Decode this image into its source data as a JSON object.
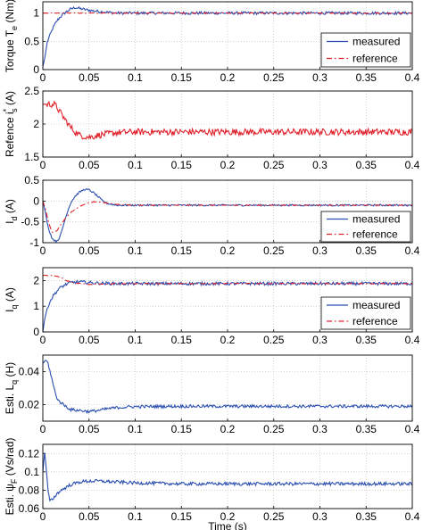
{
  "chart_data": [
    {
      "type": "line",
      "ylabel": "Torque T",
      "ylabel_sub": "e",
      "ylabel_unit": " (Nm)",
      "xlim": [
        0,
        0.4
      ],
      "ylim": [
        0,
        1.2
      ],
      "xticks": [
        "0",
        "0.05",
        "0.1",
        "0.15",
        "0.2",
        "0.25",
        "0.3",
        "0.35",
        "0.4"
      ],
      "yticks": [
        "0",
        "0.5",
        "1"
      ],
      "grid": true,
      "legend": "bottom-right",
      "series": [
        {
          "name": "measured",
          "color": "#2b4fb0",
          "style": "solid",
          "points": [
            [
              0,
              0.05
            ],
            [
              0.002,
              0.2
            ],
            [
              0.005,
              0.5
            ],
            [
              0.008,
              0.62
            ],
            [
              0.01,
              0.7
            ],
            [
              0.013,
              0.8
            ],
            [
              0.016,
              0.88
            ],
            [
              0.02,
              0.95
            ],
            [
              0.025,
              1.02
            ],
            [
              0.03,
              1.07
            ],
            [
              0.035,
              1.1
            ],
            [
              0.04,
              1.08
            ],
            [
              0.05,
              1.05
            ],
            [
              0.06,
              1.03
            ],
            [
              0.08,
              1.0
            ],
            [
              0.1,
              1.0
            ],
            [
              0.15,
              1.0
            ],
            [
              0.2,
              1.0
            ],
            [
              0.25,
              1.0
            ],
            [
              0.3,
              1.0
            ],
            [
              0.35,
              1.0
            ],
            [
              0.4,
              1.0
            ]
          ]
        },
        {
          "name": "reference",
          "color": "#e0202a",
          "style": "dashdot",
          "points": [
            [
              0,
              1.0
            ],
            [
              0.4,
              1.0
            ]
          ]
        }
      ]
    },
    {
      "type": "line",
      "ylabel": "Refence i",
      "ylabel_sup": "*",
      "ylabel_sub": "s",
      "ylabel_unit": " (A)",
      "xlim": [
        0,
        0.4
      ],
      "ylim": [
        1.5,
        2.5
      ],
      "xticks": [
        "0",
        "0.05",
        "0.1",
        "0.15",
        "0.2",
        "0.25",
        "0.3",
        "0.35",
        "0.4"
      ],
      "yticks": [
        "1.5",
        "2",
        "2.5"
      ],
      "grid": true,
      "series": [
        {
          "color": "#e0202a",
          "style": "solid",
          "points": [
            [
              0,
              2.3
            ],
            [
              0.012,
              2.3
            ],
            [
              0.015,
              2.26
            ],
            [
              0.02,
              2.15
            ],
            [
              0.025,
              2.05
            ],
            [
              0.03,
              1.95
            ],
            [
              0.035,
              1.88
            ],
            [
              0.04,
              1.83
            ],
            [
              0.05,
              1.8
            ],
            [
              0.06,
              1.83
            ],
            [
              0.08,
              1.87
            ],
            [
              0.1,
              1.88
            ],
            [
              0.15,
              1.88
            ],
            [
              0.2,
              1.88
            ],
            [
              0.25,
              1.88
            ],
            [
              0.3,
              1.88
            ],
            [
              0.35,
              1.88
            ],
            [
              0.4,
              1.88
            ]
          ]
        }
      ]
    },
    {
      "type": "line",
      "ylabel": "I",
      "ylabel_sub": "d",
      "ylabel_unit": " (A)",
      "xlim": [
        0,
        0.4
      ],
      "ylim": [
        -1,
        0.5
      ],
      "xticks": [
        "0",
        "0.05",
        "0.1",
        "0.15",
        "0.2",
        "0.25",
        "0.3",
        "0.35",
        "0.4"
      ],
      "yticks": [
        "-1",
        "-0.5",
        "0",
        "0.5"
      ],
      "grid": true,
      "legend": "bottom-right",
      "series": [
        {
          "name": "measured",
          "color": "#2b4fb0",
          "style": "solid",
          "points": [
            [
              0,
              0
            ],
            [
              0.003,
              -0.3
            ],
            [
              0.006,
              -0.65
            ],
            [
              0.01,
              -0.9
            ],
            [
              0.014,
              -0.97
            ],
            [
              0.018,
              -0.9
            ],
            [
              0.022,
              -0.6
            ],
            [
              0.026,
              -0.3
            ],
            [
              0.03,
              -0.05
            ],
            [
              0.035,
              0.12
            ],
            [
              0.04,
              0.22
            ],
            [
              0.045,
              0.28
            ],
            [
              0.05,
              0.27
            ],
            [
              0.055,
              0.2
            ],
            [
              0.06,
              0.1
            ],
            [
              0.065,
              0.0
            ],
            [
              0.07,
              -0.06
            ],
            [
              0.08,
              -0.1
            ],
            [
              0.1,
              -0.1
            ],
            [
              0.15,
              -0.1
            ],
            [
              0.2,
              -0.1
            ],
            [
              0.25,
              -0.1
            ],
            [
              0.3,
              -0.1
            ],
            [
              0.35,
              -0.1
            ],
            [
              0.4,
              -0.1
            ]
          ]
        },
        {
          "name": "reference",
          "color": "#e0202a",
          "style": "dashdot",
          "points": [
            [
              0,
              0
            ],
            [
              0.003,
              -0.2
            ],
            [
              0.006,
              -0.5
            ],
            [
              0.01,
              -0.75
            ],
            [
              0.015,
              -0.72
            ],
            [
              0.02,
              -0.55
            ],
            [
              0.025,
              -0.4
            ],
            [
              0.03,
              -0.28
            ],
            [
              0.035,
              -0.2
            ],
            [
              0.04,
              -0.13
            ],
            [
              0.045,
              -0.08
            ],
            [
              0.05,
              -0.04
            ],
            [
              0.055,
              -0.02
            ],
            [
              0.06,
              -0.02
            ],
            [
              0.07,
              -0.05
            ],
            [
              0.08,
              -0.08
            ],
            [
              0.1,
              -0.1
            ],
            [
              0.15,
              -0.1
            ],
            [
              0.2,
              -0.1
            ],
            [
              0.25,
              -0.1
            ],
            [
              0.3,
              -0.1
            ],
            [
              0.35,
              -0.1
            ],
            [
              0.4,
              -0.1
            ]
          ]
        }
      ]
    },
    {
      "type": "line",
      "ylabel": "I",
      "ylabel_sub": "q",
      "ylabel_unit": " (A)",
      "xlim": [
        0,
        0.4
      ],
      "ylim": [
        0,
        2.5
      ],
      "xticks": [
        "0",
        "0.05",
        "0.1",
        "0.15",
        "0.2",
        "0.25",
        "0.3",
        "0.35",
        "0.4"
      ],
      "yticks": [
        "0",
        "1",
        "2"
      ],
      "grid": true,
      "legend": "bottom-right",
      "series": [
        {
          "name": "measured",
          "color": "#2b4fb0",
          "style": "solid",
          "points": [
            [
              0,
              0
            ],
            [
              0.002,
              0.5
            ],
            [
              0.005,
              0.95
            ],
            [
              0.008,
              1.2
            ],
            [
              0.012,
              1.45
            ],
            [
              0.016,
              1.62
            ],
            [
              0.02,
              1.75
            ],
            [
              0.025,
              1.85
            ],
            [
              0.03,
              1.92
            ],
            [
              0.04,
              1.95
            ],
            [
              0.05,
              1.92
            ],
            [
              0.06,
              1.9
            ],
            [
              0.08,
              1.88
            ],
            [
              0.1,
              1.88
            ],
            [
              0.15,
              1.88
            ],
            [
              0.2,
              1.88
            ],
            [
              0.25,
              1.88
            ],
            [
              0.3,
              1.88
            ],
            [
              0.35,
              1.88
            ],
            [
              0.4,
              1.88
            ]
          ]
        },
        {
          "name": "reference",
          "color": "#e0202a",
          "style": "dashdot",
          "points": [
            [
              0,
              2.2
            ],
            [
              0.012,
              2.2
            ],
            [
              0.016,
              2.15
            ],
            [
              0.02,
              2.1
            ],
            [
              0.025,
              2.0
            ],
            [
              0.03,
              1.94
            ],
            [
              0.04,
              1.88
            ],
            [
              0.05,
              1.85
            ],
            [
              0.06,
              1.86
            ],
            [
              0.08,
              1.88
            ],
            [
              0.1,
              1.88
            ],
            [
              0.15,
              1.88
            ],
            [
              0.2,
              1.88
            ],
            [
              0.25,
              1.88
            ],
            [
              0.3,
              1.88
            ],
            [
              0.35,
              1.88
            ],
            [
              0.4,
              1.88
            ]
          ]
        }
      ]
    },
    {
      "type": "line",
      "ylabel": "Esti. L",
      "ylabel_sub": "q",
      "ylabel_unit": " (H)",
      "xlim": [
        0,
        0.4
      ],
      "ylim": [
        0.01,
        0.05
      ],
      "xticks": [
        "0",
        "0.05",
        "0.1",
        "0.15",
        "0.2",
        "0.25",
        "0.3",
        "0.35",
        "0.4"
      ],
      "yticks": [
        "0.02",
        "0.04"
      ],
      "grid": true,
      "series": [
        {
          "color": "#2b4fb0",
          "style": "solid",
          "points": [
            [
              0,
              0.045
            ],
            [
              0.003,
              0.047
            ],
            [
              0.005,
              0.046
            ],
            [
              0.007,
              0.042
            ],
            [
              0.01,
              0.035
            ],
            [
              0.013,
              0.028
            ],
            [
              0.016,
              0.023
            ],
            [
              0.02,
              0.021
            ],
            [
              0.025,
              0.019
            ],
            [
              0.03,
              0.017
            ],
            [
              0.04,
              0.0165
            ],
            [
              0.05,
              0.0158
            ],
            [
              0.06,
              0.0165
            ],
            [
              0.07,
              0.0175
            ],
            [
              0.08,
              0.0182
            ],
            [
              0.1,
              0.0188
            ],
            [
              0.15,
              0.019
            ],
            [
              0.2,
              0.019
            ],
            [
              0.25,
              0.019
            ],
            [
              0.3,
              0.019
            ],
            [
              0.35,
              0.019
            ],
            [
              0.4,
              0.019
            ]
          ]
        }
      ]
    },
    {
      "type": "line",
      "ylabel": "Esti. ψ",
      "ylabel_sub": "F",
      "ylabel_unit": " (Vs/rad)",
      "xlabel": "Time (s)",
      "xlim": [
        0,
        0.4
      ],
      "ylim": [
        0.06,
        0.13
      ],
      "xticks": [
        "0",
        "0.05",
        "0.1",
        "0.15",
        "0.2",
        "0.25",
        "0.3",
        "0.35",
        "0.4"
      ],
      "yticks": [
        "0.06",
        "0.08",
        "0.1",
        "0.12"
      ],
      "grid": true,
      "series": [
        {
          "color": "#2b4fb0",
          "style": "solid",
          "points": [
            [
              0,
              0.1
            ],
            [
              0.002,
              0.122
            ],
            [
              0.004,
              0.1
            ],
            [
              0.006,
              0.075
            ],
            [
              0.008,
              0.068
            ],
            [
              0.012,
              0.072
            ],
            [
              0.016,
              0.077
            ],
            [
              0.02,
              0.08
            ],
            [
              0.025,
              0.083
            ],
            [
              0.03,
              0.086
            ],
            [
              0.04,
              0.089
            ],
            [
              0.05,
              0.09
            ],
            [
              0.06,
              0.09
            ],
            [
              0.08,
              0.089
            ],
            [
              0.1,
              0.088
            ],
            [
              0.15,
              0.087
            ],
            [
              0.2,
              0.087
            ],
            [
              0.25,
              0.087
            ],
            [
              0.3,
              0.087
            ],
            [
              0.35,
              0.087
            ],
            [
              0.4,
              0.087
            ]
          ]
        }
      ]
    }
  ]
}
